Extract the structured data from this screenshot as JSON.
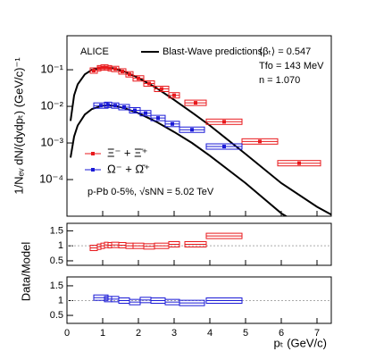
{
  "chart_data": [
    {
      "type": "spectra",
      "title": "ALICE",
      "ylog": true,
      "ylabel": "1/Nₑᵥ dN/(dydpₜ) (GeV/c)⁻¹",
      "model_label": "Blast-Wave predictions:",
      "model_params": [
        "⟨βₜ⟩ = 0.547",
        "Tfo = 143 MeV",
        "n = 1.070"
      ],
      "system": "p-Pb 0-5%, √sNN = 5.02 TeV",
      "xlim": [
        0,
        7.4
      ],
      "xticks": [
        0,
        1,
        2,
        3,
        4,
        5,
        6,
        7
      ],
      "ylim": [
        1e-05,
        0.85
      ],
      "yticks": [
        {
          "value": 0.0001,
          "label": "10⁻⁴"
        },
        {
          "value": 0.001,
          "label": "10⁻³"
        },
        {
          "value": 0.01,
          "label": "10⁻²"
        },
        {
          "value": 0.1,
          "label": "10⁻¹"
        }
      ],
      "series": [
        {
          "name": "Ξ⁻ + Ξ̄⁺",
          "color": "#e8191c",
          "x": [
            0.75,
            0.9,
            1.0,
            1.1,
            1.2,
            1.35,
            1.55,
            1.75,
            2.0,
            2.3,
            2.65,
            3.0,
            3.6,
            4.4,
            5.4,
            6.5
          ],
          "xerr": [
            0.1,
            0.05,
            0.05,
            0.05,
            0.05,
            0.1,
            0.1,
            0.1,
            0.15,
            0.15,
            0.2,
            0.15,
            0.3,
            0.5,
            0.5,
            0.6
          ],
          "values": [
            0.095,
            0.11,
            0.115,
            0.115,
            0.11,
            0.105,
            0.09,
            0.075,
            0.058,
            0.042,
            0.03,
            0.02,
            0.0125,
            0.0038,
            0.0011,
            0.00028
          ]
        },
        {
          "name": "Ω⁻ + Ω̄⁺",
          "color": "#1a1ad6",
          "x": [
            0.95,
            1.15,
            1.35,
            1.6,
            1.9,
            2.2,
            2.55,
            2.95,
            3.5,
            4.4
          ],
          "xerr": [
            0.2,
            0.1,
            0.1,
            0.15,
            0.15,
            0.15,
            0.2,
            0.2,
            0.35,
            0.5
          ],
          "values": [
            0.0105,
            0.011,
            0.0105,
            0.0095,
            0.0078,
            0.0065,
            0.0048,
            0.0033,
            0.0023,
            0.0008
          ]
        }
      ],
      "models": [
        {
          "color": "#000000",
          "x": [
            0.1,
            0.2,
            0.3,
            0.5,
            0.7,
            1.0,
            1.3,
            1.6,
            2.0,
            2.5,
            3.0,
            3.5,
            4.0,
            5.0,
            6.0,
            7.0,
            7.4
          ],
          "values": [
            0.004,
            0.02,
            0.04,
            0.075,
            0.1,
            0.115,
            0.11,
            0.09,
            0.06,
            0.032,
            0.015,
            0.0068,
            0.003,
            0.0005,
            8e-05,
            1.8e-05,
            1.1e-05
          ]
        },
        {
          "color": "#000000",
          "x": [
            0.1,
            0.2,
            0.3,
            0.5,
            0.7,
            1.0,
            1.3,
            1.6,
            2.0,
            2.5,
            3.0,
            3.5,
            4.0,
            5.0,
            6.0,
            6.4
          ],
          "values": [
            0.0004,
            0.0015,
            0.003,
            0.006,
            0.0085,
            0.0105,
            0.0105,
            0.009,
            0.0065,
            0.0038,
            0.002,
            0.001,
            0.00045,
            8e-05,
            1.2e-05,
            7e-06
          ]
        }
      ]
    },
    {
      "type": "ratio",
      "ylabel": "Data/Model",
      "reference": 1,
      "xlim": [
        0,
        7.4
      ],
      "xticks": [
        0,
        1,
        2,
        3,
        4,
        5,
        6,
        7
      ],
      "ylim": [
        0.35,
        1.75
      ],
      "yticks": [
        0.5,
        1,
        1.5
      ],
      "series": [
        {
          "color": "#e8191c",
          "x": [
            0.75,
            0.9,
            1.0,
            1.1,
            1.2,
            1.35,
            1.55,
            1.75,
            2.0,
            2.3,
            2.65,
            3.0,
            3.6,
            4.4
          ],
          "xerr": [
            0.1,
            0.05,
            0.05,
            0.05,
            0.05,
            0.1,
            0.1,
            0.1,
            0.15,
            0.15,
            0.2,
            0.15,
            0.3,
            0.5
          ],
          "values": [
            0.93,
            0.97,
            1.0,
            1.03,
            1.02,
            1.03,
            1.02,
            1.0,
            1.0,
            0.98,
            1.0,
            1.05,
            1.05,
            1.33
          ]
        }
      ]
    },
    {
      "type": "ratio",
      "xlabel": "pₜ (GeV/c)",
      "reference": 1,
      "xlim": [
        0,
        7.4
      ],
      "xticks": [
        0,
        1,
        2,
        3,
        4,
        5,
        6,
        7
      ],
      "ylim": [
        0.23,
        1.8
      ],
      "yticks": [
        0.5,
        1,
        1.5
      ],
      "series": [
        {
          "color": "#1a1ad6",
          "x": [
            0.95,
            1.15,
            1.35,
            1.6,
            1.9,
            2.2,
            2.55,
            2.95,
            3.5,
            4.4
          ],
          "xerr": [
            0.2,
            0.1,
            0.1,
            0.15,
            0.15,
            0.15,
            0.2,
            0.2,
            0.35,
            0.5
          ],
          "values": [
            1.1,
            1.05,
            1.05,
            1.0,
            0.95,
            1.02,
            1.0,
            0.95,
            0.92,
            1.0
          ]
        }
      ]
    }
  ]
}
